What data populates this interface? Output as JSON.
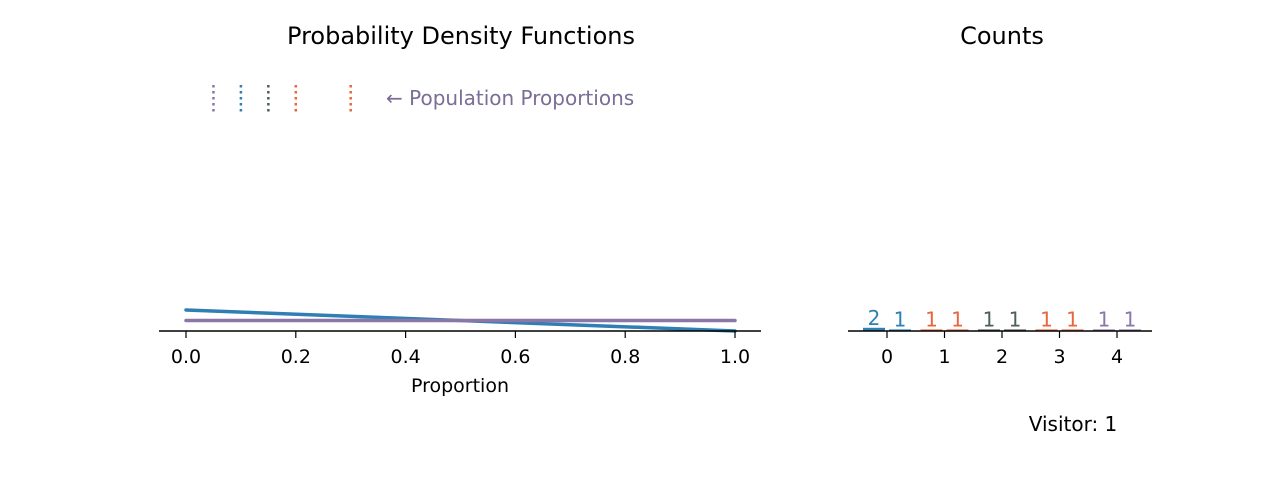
{
  "chart_data": [
    {
      "type": "line",
      "title": "Probability Density Functions",
      "xlabel": "Proportion",
      "ylabel": "",
      "xlim": [
        -0.05,
        1.05
      ],
      "x_ticks": [
        "0.0",
        "0.2",
        "0.4",
        "0.6",
        "0.8",
        "1.0"
      ],
      "population_proportions": [
        {
          "value": 0.05,
          "color": "#8b76a8"
        },
        {
          "value": 0.1,
          "color": "#2f7fb4"
        },
        {
          "value": 0.15,
          "color": "#4f5f57"
        },
        {
          "value": 0.2,
          "color": "#e8663d"
        },
        {
          "value": 0.3,
          "color": "#e8663d"
        }
      ],
      "annotation": "← Population Proportions",
      "series": [
        {
          "x": [
            0.0,
            1.0
          ],
          "y": [
            2.0,
            0.0
          ],
          "color": "#2f7fb4"
        },
        {
          "x": [
            0.0,
            1.0
          ],
          "y": [
            1.0,
            1.0
          ],
          "color": "#8b76a8"
        }
      ],
      "grid": false
    },
    {
      "type": "bar",
      "title": "Counts",
      "categories": [
        "0",
        "1",
        "2",
        "3",
        "4"
      ],
      "series": [
        {
          "values": [
            2,
            1,
            1,
            1,
            1
          ]
        },
        {
          "values": [
            1,
            1,
            1,
            1,
            1
          ]
        }
      ],
      "bar_labels": [
        [
          "2",
          "1"
        ],
        [
          "1",
          "1"
        ],
        [
          "1",
          "1"
        ],
        [
          "1",
          "1"
        ],
        [
          "1",
          "1"
        ]
      ],
      "colors": [
        "#2f7fb4",
        "#e8663d",
        "#4f5f57",
        "#e8663d",
        "#8b76a8"
      ],
      "grid": false
    }
  ],
  "visitor_label": "Visitor: 1"
}
